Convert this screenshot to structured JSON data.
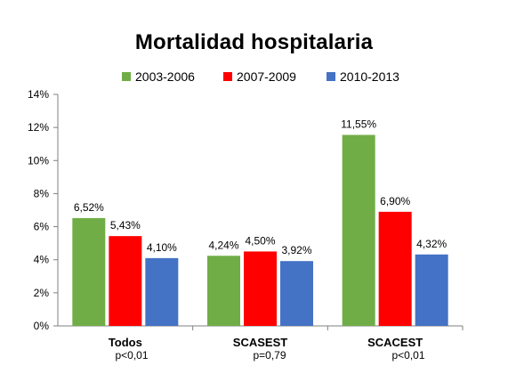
{
  "chart_data": {
    "type": "bar",
    "title": "Mortalidad hospitalaria",
    "xlabel": "",
    "ylabel": "",
    "ylim": [
      0,
      14
    ],
    "yticks": [
      "0%",
      "2%",
      "4%",
      "6%",
      "8%",
      "10%",
      "12%",
      "14%"
    ],
    "ytick_values": [
      0,
      2,
      4,
      6,
      8,
      10,
      12,
      14
    ],
    "grid": false,
    "legend_position": "top",
    "categories": [
      "Todos",
      "SCASEST",
      "SCACEST"
    ],
    "category_sublabels": [
      "p<0,01",
      "p=0,79",
      "p<0,01"
    ],
    "series": [
      {
        "name": "2003-2006",
        "color": "#70ad47",
        "values": [
          6.52,
          4.24,
          11.55
        ],
        "labels": [
          "6,52%",
          "4,24%",
          "11,55%"
        ]
      },
      {
        "name": "2007-2009",
        "color": "#ff0000",
        "values": [
          5.43,
          4.5,
          6.9
        ],
        "labels": [
          "5,43%",
          "4,50%",
          "6,90%"
        ]
      },
      {
        "name": "2010-2013",
        "color": "#4472c4",
        "values": [
          4.1,
          3.92,
          4.32
        ],
        "labels": [
          "4,10%",
          "3,92%",
          "4,32%"
        ]
      }
    ]
  }
}
